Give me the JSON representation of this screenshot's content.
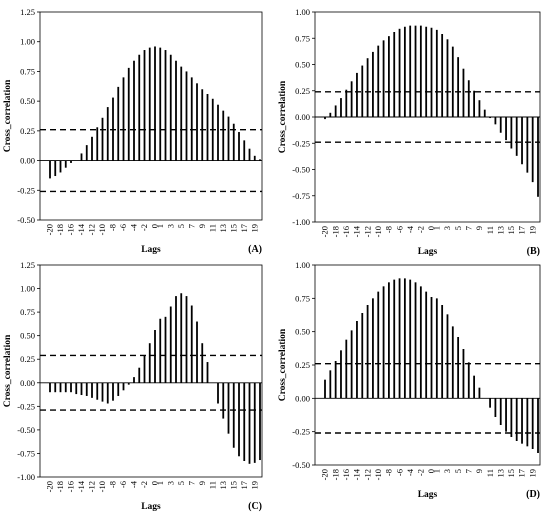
{
  "chart_data": [
    {
      "panel_label": "(A)",
      "type": "bar",
      "xlabel": "Lags",
      "ylabel": "Cross_correlation",
      "ylim": [
        -0.5,
        1.25
      ],
      "yticks": [
        "1.25",
        "1.00",
        "0.75",
        "0.50",
        "0.25",
        "0.00",
        "-0.25",
        "-0.50"
      ],
      "xticks": [
        "-20",
        "-18",
        "-16",
        "-14",
        "-12",
        "-10",
        "-8",
        "-6",
        "-4",
        "-2",
        "0",
        "1",
        "3",
        "5",
        "7",
        "9",
        "11",
        "13",
        "15",
        "17",
        "19"
      ],
      "x": [
        -20,
        -19,
        -18,
        -17,
        -16,
        -15,
        -14,
        -13,
        -12,
        -11,
        -10,
        -9,
        -8,
        -7,
        -6,
        -5,
        -4,
        -3,
        -2,
        -1,
        0,
        1,
        2,
        3,
        4,
        5,
        6,
        7,
        8,
        9,
        10,
        11,
        12,
        13,
        14,
        15,
        16,
        17,
        18,
        19,
        20
      ],
      "values": [
        -0.15,
        -0.13,
        -0.1,
        -0.06,
        -0.02,
        0.0,
        0.06,
        0.13,
        0.2,
        0.28,
        0.36,
        0.45,
        0.53,
        0.62,
        0.7,
        0.78,
        0.84,
        0.89,
        0.93,
        0.95,
        0.96,
        0.95,
        0.93,
        0.89,
        0.84,
        0.79,
        0.75,
        0.7,
        0.65,
        0.6,
        0.56,
        0.52,
        0.47,
        0.42,
        0.37,
        0.31,
        0.24,
        0.17,
        0.1,
        0.04,
        0.01
      ],
      "confidence_bounds": [
        0.26,
        -0.26
      ]
    },
    {
      "panel_label": "(B)",
      "type": "bar",
      "xlabel": "Lags",
      "ylabel": "Cross_correlation",
      "ylim": [
        -1.0,
        1.0
      ],
      "yticks": [
        "1.00",
        "0.75",
        "0.50",
        "0.25",
        "0.00",
        "-0.25",
        "-0.50",
        "-0.75",
        "-1.00"
      ],
      "xticks": [
        "-20",
        "-18",
        "-16",
        "-14",
        "-12",
        "-10",
        "-8",
        "-6",
        "-4",
        "-2",
        "0",
        "1",
        "3",
        "5",
        "7",
        "9",
        "11",
        "13",
        "15",
        "17",
        "19"
      ],
      "x": [
        -20,
        -19,
        -18,
        -17,
        -16,
        -15,
        -14,
        -13,
        -12,
        -11,
        -10,
        -9,
        -8,
        -7,
        -6,
        -5,
        -4,
        -3,
        -2,
        -1,
        0,
        1,
        2,
        3,
        4,
        5,
        6,
        7,
        8,
        9,
        10,
        11,
        12,
        13,
        14,
        15,
        16,
        17,
        18,
        19,
        20
      ],
      "values": [
        -0.02,
        0.04,
        0.11,
        0.18,
        0.26,
        0.34,
        0.42,
        0.49,
        0.56,
        0.62,
        0.68,
        0.73,
        0.77,
        0.81,
        0.84,
        0.86,
        0.87,
        0.87,
        0.87,
        0.86,
        0.85,
        0.83,
        0.79,
        0.74,
        0.67,
        0.57,
        0.46,
        0.35,
        0.25,
        0.16,
        0.07,
        -0.01,
        -0.07,
        -0.15,
        -0.22,
        -0.3,
        -0.37,
        -0.45,
        -0.53,
        -0.62,
        -0.76
      ],
      "confidence_bounds": [
        0.24,
        -0.24
      ]
    },
    {
      "panel_label": "(C)",
      "type": "bar",
      "xlabel": "Lags",
      "ylabel": "Cross_correlation",
      "ylim": [
        -1.0,
        1.25
      ],
      "yticks": [
        "1.25",
        "1.00",
        "0.75",
        "0.50",
        "0.25",
        "0.00",
        "-0.25",
        "-0.50",
        "-0.75",
        "-1.00"
      ],
      "xticks": [
        "-20",
        "-18",
        "-16",
        "-14",
        "-12",
        "-10",
        "-8",
        "-6",
        "-4",
        "-2",
        "0",
        "1",
        "3",
        "5",
        "7",
        "9",
        "11",
        "13",
        "15",
        "17",
        "19"
      ],
      "x": [
        -20,
        -19,
        -18,
        -17,
        -16,
        -15,
        -14,
        -13,
        -12,
        -11,
        -10,
        -9,
        -8,
        -7,
        -6,
        -5,
        -4,
        -3,
        -2,
        -1,
        0,
        1,
        2,
        3,
        4,
        5,
        6,
        7,
        8,
        9,
        10,
        11,
        12,
        13,
        14,
        15,
        16,
        17,
        18,
        19,
        20
      ],
      "values": [
        -0.1,
        -0.1,
        -0.1,
        -0.1,
        -0.1,
        -0.12,
        -0.13,
        -0.14,
        -0.16,
        -0.18,
        -0.2,
        -0.22,
        -0.19,
        -0.14,
        -0.08,
        -0.02,
        0.06,
        0.16,
        0.29,
        0.42,
        0.56,
        0.68,
        0.7,
        0.81,
        0.92,
        0.95,
        0.92,
        0.82,
        0.65,
        0.42,
        0.22,
        0.0,
        -0.22,
        -0.38,
        -0.54,
        -0.69,
        -0.78,
        -0.83,
        -0.86,
        -0.85,
        -0.82
      ],
      "confidence_bounds": [
        0.29,
        -0.29
      ]
    },
    {
      "panel_label": "(D)",
      "type": "bar",
      "xlabel": "Lags",
      "ylabel": "Cross_correlation",
      "ylim": [
        -0.5,
        1.0
      ],
      "yticks": [
        "1.00",
        "0.75",
        "0.50",
        "0.25",
        "0.00",
        "-0.25",
        "-0.50"
      ],
      "xticks": [
        "-20",
        "-18",
        "-16",
        "-14",
        "-12",
        "-10",
        "-8",
        "-6",
        "-4",
        "-2",
        "0",
        "1",
        "3",
        "5",
        "7",
        "9",
        "11",
        "13",
        "15",
        "17",
        "19"
      ],
      "x": [
        -20,
        -19,
        -18,
        -17,
        -16,
        -15,
        -14,
        -13,
        -12,
        -11,
        -10,
        -9,
        -8,
        -7,
        -6,
        -5,
        -4,
        -3,
        -2,
        -1,
        0,
        1,
        2,
        3,
        4,
        5,
        6,
        7,
        8,
        9,
        10,
        11,
        12,
        13,
        14,
        15,
        16,
        17,
        18,
        19,
        20
      ],
      "values": [
        0.14,
        0.21,
        0.28,
        0.36,
        0.44,
        0.51,
        0.58,
        0.64,
        0.7,
        0.75,
        0.8,
        0.84,
        0.87,
        0.89,
        0.9,
        0.9,
        0.89,
        0.87,
        0.84,
        0.8,
        0.76,
        0.75,
        0.7,
        0.63,
        0.54,
        0.46,
        0.37,
        0.27,
        0.17,
        0.08,
        0.0,
        -0.07,
        -0.14,
        -0.2,
        -0.25,
        -0.29,
        -0.32,
        -0.34,
        -0.36,
        -0.38,
        -0.41
      ],
      "confidence_bounds": [
        0.26,
        -0.26
      ]
    }
  ]
}
